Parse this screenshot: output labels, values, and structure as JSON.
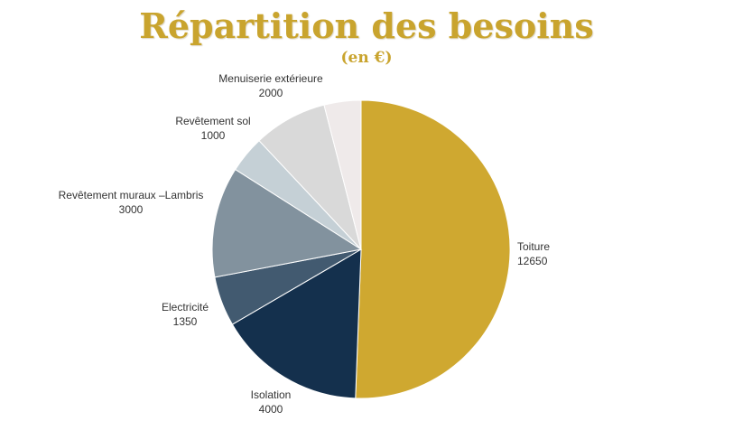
{
  "chart_data": {
    "type": "pie",
    "title": "Répartition des besoins",
    "subtitle": "(en €)",
    "slices": [
      {
        "label": "Toiture",
        "value": 12650,
        "color": "#cfa830"
      },
      {
        "label": "Isolation",
        "value": 4000,
        "color": "#14304d"
      },
      {
        "label": "Electricité",
        "value": 1350,
        "color": "#425a70"
      },
      {
        "label": "Revêtement muraux –Lambris",
        "value": 3000,
        "color": "#82929e"
      },
      {
        "label": "Revêtement sol",
        "value": 1000,
        "color": "#c5d0d6"
      },
      {
        "label": "Menuiserie extérieure",
        "value": 2000,
        "color": "#d9d9d9"
      },
      {
        "label": "",
        "value": 1000,
        "color": "#efeaea"
      }
    ]
  }
}
